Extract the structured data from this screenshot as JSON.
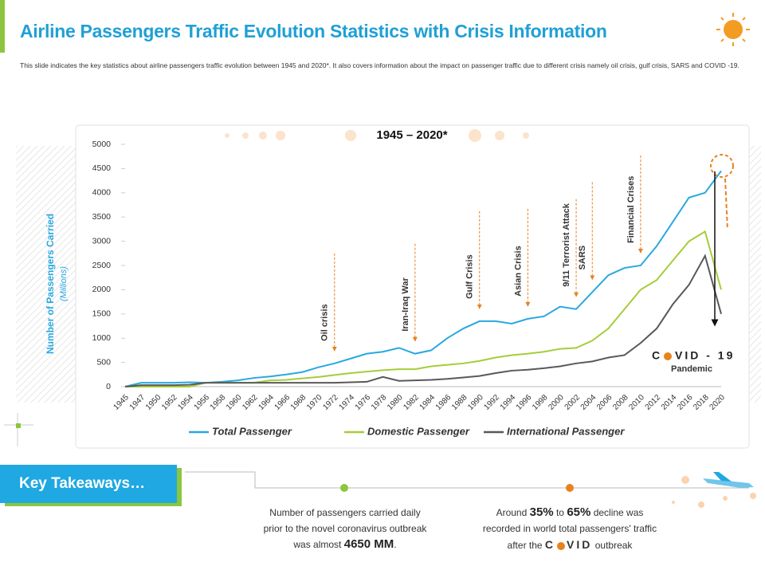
{
  "header": {
    "title": "Airline Passengers Traffic Evolution Statistics with Crisis Information",
    "description": "This slide indicates the key statistics about airline passengers traffic evolution between 1945 and 2020*. It also covers information about the impact on passenger traffic due to different crisis namely oil crisis, gulf crisis, SARS and COVID -19."
  },
  "chart_data": {
    "type": "line",
    "title": "1945 – 2020*",
    "y_label": "Number of Passengers Carried",
    "y_sublabel": "(Millions)",
    "categories": [
      "1945",
      "1947",
      "1950",
      "1952",
      "1954",
      "1956",
      "1958",
      "1960",
      "1962",
      "1964",
      "1966",
      "1968",
      "1970",
      "1972",
      "1974",
      "1976",
      "1978",
      "1980",
      "1982",
      "1984",
      "1986",
      "1988",
      "1990",
      "1992",
      "1994",
      "1996",
      "1998",
      "2000",
      "2002",
      "2004",
      "2006",
      "2008",
      "2010",
      "2012",
      "2014",
      "2016",
      "2018",
      "2020"
    ],
    "ylim": [
      0,
      5000
    ],
    "yticks": [
      0,
      500,
      1000,
      1500,
      2000,
      2500,
      3000,
      3500,
      4000,
      4500,
      5000
    ],
    "series": [
      {
        "name": "Total Passenger",
        "color": "#29a8e0",
        "values": [
          0,
          80,
          80,
          80,
          90,
          80,
          100,
          130,
          180,
          210,
          250,
          300,
          400,
          480,
          580,
          680,
          720,
          800,
          680,
          750,
          1000,
          1200,
          1350,
          1350,
          1300,
          1400,
          1450,
          1650,
          1600,
          1950,
          2300,
          2450,
          2500,
          2900,
          3400,
          3900,
          4000,
          4450
        ]
      },
      {
        "name": "Domestic Passenger",
        "color": "#a5cd3a",
        "values": [
          0,
          0,
          0,
          0,
          0,
          80,
          80,
          80,
          80,
          130,
          140,
          170,
          200,
          240,
          280,
          310,
          340,
          360,
          360,
          420,
          450,
          480,
          530,
          600,
          650,
          680,
          720,
          780,
          800,
          950,
          1200,
          1600,
          2000,
          2200,
          2600,
          3000,
          3200,
          2000
        ]
      },
      {
        "name": "International Passenger",
        "color": "#595959",
        "values": [
          0,
          30,
          30,
          30,
          40,
          80,
          80,
          80,
          80,
          80,
          80,
          80,
          80,
          80,
          90,
          100,
          200,
          120,
          130,
          140,
          160,
          190,
          220,
          280,
          330,
          350,
          380,
          420,
          480,
          520,
          600,
          650,
          900,
          1200,
          1700,
          2100,
          2700,
          1500
        ]
      }
    ],
    "annotations": [
      {
        "label": "Oil crisis",
        "x": "1972"
      },
      {
        "label": "Iran-Iraq War",
        "x": "1982"
      },
      {
        "label": "Gulf Crisis",
        "x": "1990"
      },
      {
        "label": "Asian Crisis",
        "x": "1996"
      },
      {
        "label": "9/11 Terrorist Attack",
        "x": "2002"
      },
      {
        "label": "SARS",
        "x": "2004"
      },
      {
        "label": "Financial Crises",
        "x": "2010"
      }
    ],
    "covid_label": [
      "C",
      "VID - 19"
    ],
    "pandemic": "Pandemic"
  },
  "takeaways_title": "Key Takeaways…",
  "takeaways": [
    {
      "lead": [
        {
          "text": "Number of passengers carried daily prior to the novel coronavirus outbreak was almost ",
          "bold": false
        },
        {
          "text": "4650 MM",
          "bold": true
        }
      ],
      "tail": "."
    },
    {
      "lead": [
        {
          "text": "Around ",
          "bold": false
        },
        {
          "text": "35%",
          "bold": true
        },
        {
          "text": " to ",
          "bold": false
        },
        {
          "text": "65%",
          "bold": true
        },
        {
          "text": " decline was recorded in world total passengers' traffic after the ",
          "bold": false
        }
      ],
      "covid": [
        "C",
        "VID"
      ],
      "tail": " outbreak"
    }
  ]
}
